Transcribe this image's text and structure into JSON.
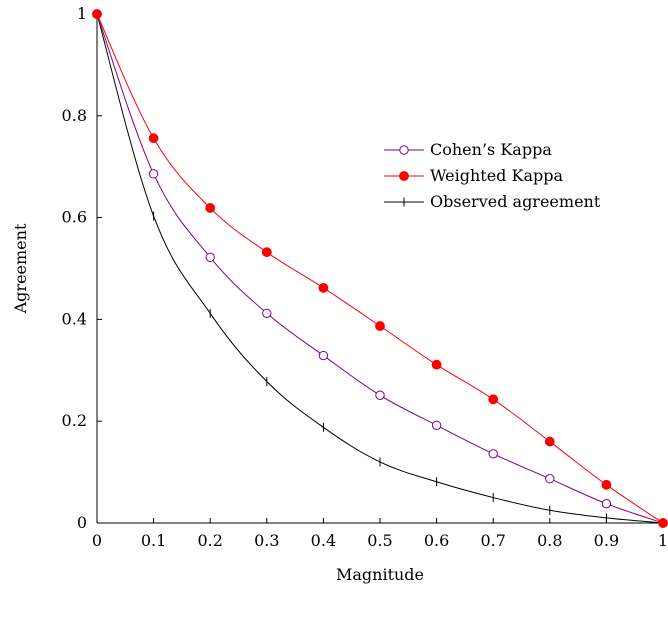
{
  "chart_data": {
    "type": "line",
    "title": "",
    "xlabel": "Magnitude",
    "ylabel": "Agreement",
    "xlim": [
      0,
      1
    ],
    "ylim": [
      0,
      1
    ],
    "x_ticks": [
      "0",
      "0.1",
      "0.2",
      "0.3",
      "0.4",
      "0.5",
      "0.6",
      "0.7",
      "0.8",
      "0.9",
      "1"
    ],
    "y_ticks": [
      "0",
      "0.2",
      "0.4",
      "0.6",
      "0.8",
      "1"
    ],
    "grid": false,
    "legend_position": "center-right",
    "x": [
      0,
      0.1,
      0.2,
      0.3,
      0.4,
      0.5,
      0.6,
      0.7,
      0.8,
      0.9,
      1
    ],
    "series": [
      {
        "name": "Cohen’s Kappa",
        "color": "#800080",
        "marker": "open-circle",
        "values": [
          1,
          0.686,
          0.522,
          0.412,
          0.329,
          0.251,
          0.192,
          0.136,
          0.087,
          0.038,
          0
        ]
      },
      {
        "name": "Weighted Kappa",
        "color": "#ff0000",
        "marker": "filled-circle",
        "values": [
          1,
          0.756,
          0.619,
          0.532,
          0.462,
          0.387,
          0.311,
          0.243,
          0.16,
          0.075,
          0
        ]
      },
      {
        "name": "Observed agreement",
        "color": "#000000",
        "marker": "vertical-bar",
        "values": [
          1,
          0.603,
          0.412,
          0.278,
          0.188,
          0.12,
          0.081,
          0.05,
          0.025,
          0.01,
          0
        ]
      }
    ]
  }
}
